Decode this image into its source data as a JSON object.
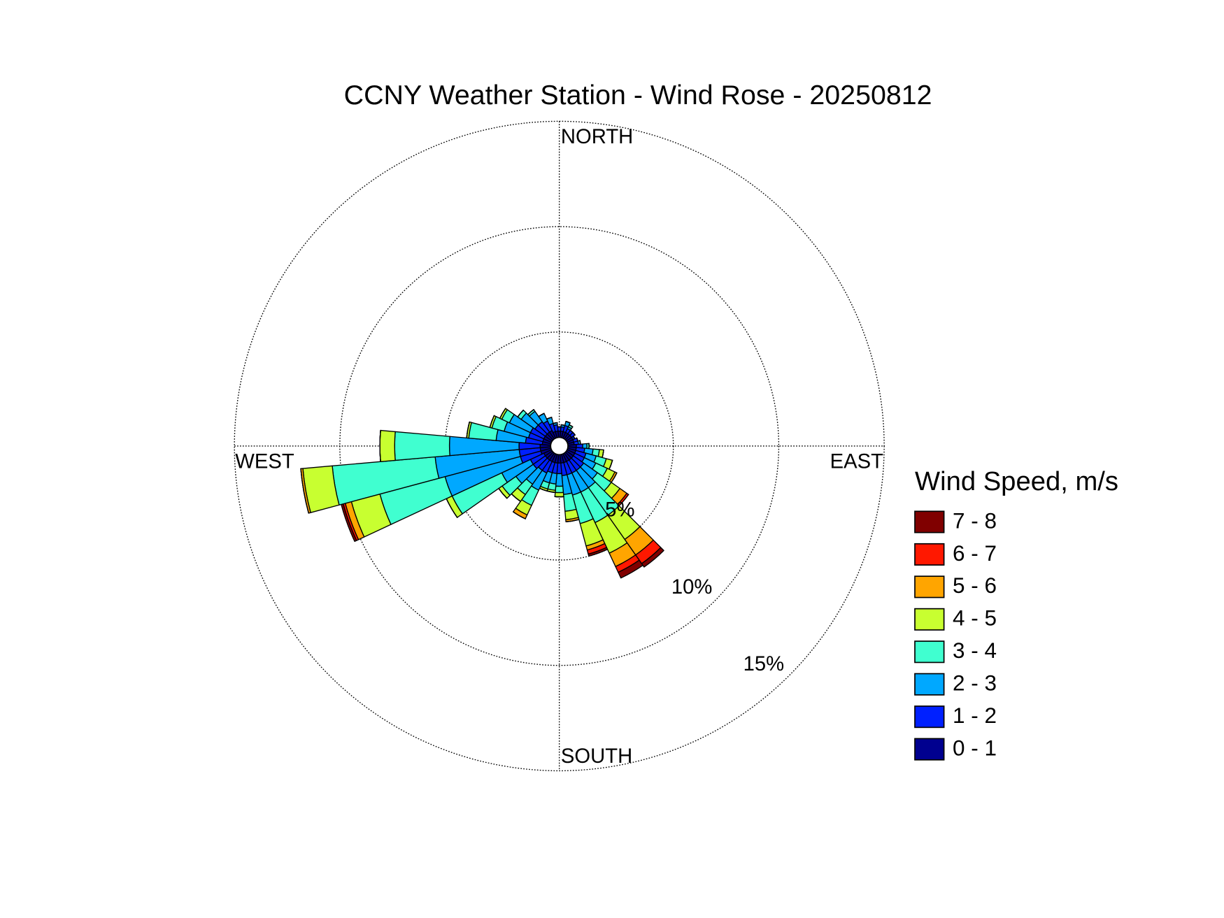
{
  "chart_data": {
    "type": "windrose",
    "title": "CCNY Weather Station - Wind Rose - 20250812",
    "direction_labels": {
      "north": "NORTH",
      "east": "EAST",
      "south": "SOUTH",
      "west": "WEST"
    },
    "legend_title": "Wind Speed, m/s",
    "categories": [
      null,
      null,
      null,
      null,
      null,
      null,
      null,
      null,
      null,
      null,
      null,
      null,
      null,
      null,
      null,
      null,
      null,
      null,
      null,
      null,
      null,
      null,
      null,
      null,
      null,
      null,
      null,
      null,
      null,
      null,
      null,
      null,
      null,
      null,
      null,
      null
    ],
    "ylim": [
      0,
      15
    ],
    "yticks": [
      {
        "value": 5,
        "label": "5%"
      },
      {
        "value": 10,
        "label": "10%"
      },
      {
        "value": 15,
        "label": "15%"
      }
    ],
    "grid": true,
    "series": [
      {
        "name": "0 - 1",
        "color": "#00008f",
        "values": [
          0.3,
          0.3,
          0.3,
          0.3,
          0.3,
          0.3,
          0.3,
          0.3,
          0.3,
          0.4,
          0.4,
          0.4,
          0.4,
          0.4,
          0.4,
          0.4,
          0.4,
          0.4,
          0.4,
          0.4,
          0.4,
          0.4,
          0.4,
          0.4,
          0.4,
          0.5,
          0.5,
          0.5,
          0.4,
          0.4,
          0.4,
          0.4,
          0.4,
          0.4,
          0.3,
          0.3
        ]
      },
      {
        "name": "1 - 2",
        "color": "#0020ff",
        "values": [
          0.2,
          0.2,
          0.3,
          0.2,
          0.2,
          0.2,
          0.1,
          0.2,
          0.2,
          0.3,
          0.4,
          0.5,
          0.5,
          0.6,
          0.6,
          0.6,
          0.6,
          0.6,
          0.5,
          0.5,
          0.5,
          0.6,
          0.6,
          0.7,
          0.7,
          1.0,
          1.0,
          1.0,
          0.8,
          0.7,
          0.7,
          0.6,
          0.6,
          0.5,
          0.4,
          0.3
        ]
      },
      {
        "name": "2 - 3",
        "color": "#00a8ff",
        "values": [
          0,
          0.1,
          0.2,
          0.1,
          0,
          0,
          0,
          0,
          0.1,
          0.2,
          0.4,
          0.5,
          0.6,
          0.8,
          1.0,
          1.0,
          1.0,
          0.9,
          0.6,
          0.5,
          0.5,
          0.9,
          0.8,
          1.0,
          1.5,
          3.7,
          4.0,
          3.3,
          1.4,
          1.2,
          1.1,
          0.8,
          0.6,
          0.4,
          0.3,
          0.1
        ]
      },
      {
        "name": "3 - 4",
        "color": "#40ffd0",
        "values": [
          0,
          0,
          0,
          0.1,
          0,
          0,
          0,
          0,
          0,
          0.1,
          0.3,
          0.5,
          0.6,
          0.8,
          1.6,
          1.6,
          1.4,
          0.8,
          0.3,
          0.3,
          0.3,
          0.8,
          0.6,
          0.8,
          2.6,
          3.2,
          4.9,
          2.6,
          1.3,
          0.6,
          0.4,
          0.2,
          0.1,
          0,
          0,
          0
        ]
      },
      {
        "name": "4 - 5",
        "color": "#c8ff30",
        "values": [
          0,
          0,
          0,
          0,
          0,
          0,
          0,
          0,
          0,
          0,
          0.2,
          0.3,
          0.4,
          0.5,
          1.4,
          1.6,
          1.1,
          0.4,
          0.2,
          0.1,
          0.1,
          0.5,
          0.4,
          0.2,
          0.3,
          1.4,
          1.4,
          0.7,
          0.1,
          0.1,
          0.1,
          0,
          0,
          0,
          0,
          0
        ]
      },
      {
        "name": "5 - 6",
        "color": "#ffa500",
        "values": [
          0,
          0,
          0,
          0,
          0,
          0,
          0,
          0,
          0,
          0,
          0,
          0,
          0.1,
          0.4,
          0.9,
          0.7,
          0.2,
          0.1,
          0,
          0,
          0,
          0.2,
          0,
          0,
          0,
          0.3,
          0.1,
          0,
          0,
          0,
          0,
          0,
          0,
          0,
          0,
          0
        ]
      },
      {
        "name": "6 - 7",
        "color": "#ff1800",
        "values": [
          0,
          0,
          0,
          0,
          0,
          0,
          0,
          0,
          0,
          0,
          0,
          0,
          0,
          0.1,
          0.5,
          0.3,
          0.2,
          0,
          0,
          0,
          0,
          0,
          0,
          0,
          0,
          0.1,
          0,
          0,
          0,
          0,
          0,
          0,
          0,
          0,
          0,
          0
        ]
      },
      {
        "name": "7 - 8",
        "color": "#800000",
        "values": [
          0,
          0,
          0,
          0,
          0,
          0,
          0,
          0,
          0,
          0,
          0,
          0,
          0,
          0,
          0.2,
          0.3,
          0.1,
          0,
          0,
          0,
          0,
          0,
          0,
          0,
          0,
          0.1,
          0,
          0,
          0,
          0,
          0,
          0,
          0,
          0,
          0,
          0
        ]
      }
    ]
  }
}
